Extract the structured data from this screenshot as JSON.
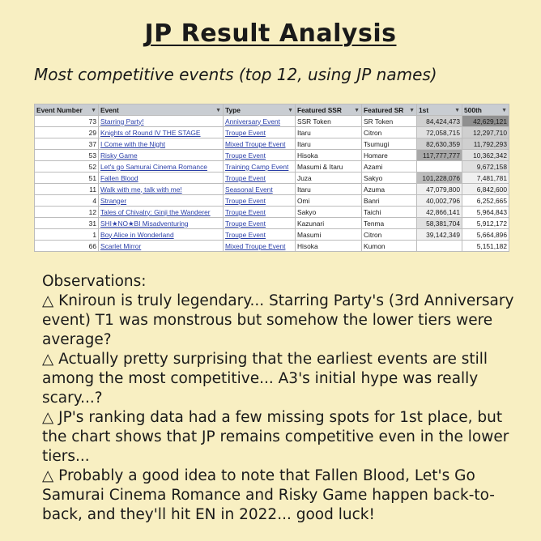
{
  "title": "JP Result Analysis",
  "subtitle": "Most competitive events (top 12, using JP names)",
  "table": {
    "headers": [
      "Event Number",
      "Event",
      "Type",
      "Featured SSR",
      "Featured SR",
      "1st",
      "500th"
    ],
    "rows": [
      [
        "73",
        "Starring Party!",
        "Anniversary Event",
        "SSR Token",
        "SR Token",
        "84,424,473",
        "42,629,121"
      ],
      [
        "29",
        "Knights of Round IV THE STAGE",
        "Troupe Event",
        "Itaru",
        "Citron",
        "72,058,715",
        "12,297,710"
      ],
      [
        "37",
        "I Come with the Night",
        "Mixed Troupe Event",
        "Itaru",
        "Tsumugi",
        "82,630,359",
        "11,792,293"
      ],
      [
        "53",
        "Risky Game",
        "Troupe Event",
        "Hisoka",
        "Homare",
        "117,777,777",
        "10,362,342"
      ],
      [
        "52",
        "Let's go Samurai Cinema Romance",
        "Training Camp Event",
        "Masumi & Itaru",
        "Azami",
        "",
        "9,672,158"
      ],
      [
        "51",
        "Fallen Blood",
        "Troupe Event",
        "Juza",
        "Sakyo",
        "101,228,076",
        "7,481,781"
      ],
      [
        "11",
        "Walk with me, talk with me!",
        "Seasonal Event",
        "Itaru",
        "Azuma",
        "47,079,800",
        "6,842,600"
      ],
      [
        "4",
        "Stranger",
        "Troupe Event",
        "Omi",
        "Banri",
        "40,002,796",
        "6,252,665"
      ],
      [
        "12",
        "Tales of Chivalry: Ginji the Wanderer",
        "Troupe Event",
        "Sakyo",
        "Taichi",
        "42,866,141",
        "5,964,843"
      ],
      [
        "31",
        "SHI★NO★BI Misadventuring",
        "Troupe Event",
        "Kazunari",
        "Tenma",
        "58,381,704",
        "5,912,172"
      ],
      [
        "1",
        "Boy Alice in Wonderland",
        "Troupe Event",
        "Masumi",
        "Citron",
        "39,142,349",
        "5,664,896"
      ],
      [
        "66",
        "Scarlet Mirror",
        "Mixed Troupe Event",
        "Hisoka",
        "Kumon",
        "",
        "5,151,182"
      ]
    ]
  },
  "observations": [
    "Observations:",
    "△ Kniroun is truly legendary... Starring Party's (3rd Anniversary event) T1 was monstrous but somehow the lower tiers were average?",
    "△ Actually pretty surprising that the earliest events are still among the most competitive... A3's initial hype was really scary...?",
    "△ JP's ranking data had a few missing spots for 1st place, but the chart shows that JP remains competitive even in the lower tiers...",
    "△ Probably a good idea to note that Fallen Blood, Let's Go Samurai Cinema Romance and Risky Game happen back-to-back, and they'll hit EN in 2022... good luck!"
  ],
  "colors": {
    "background": "#f8efc2",
    "header_bg": "#c9cdd2",
    "link": "#2a3fa8"
  },
  "icons": {
    "filter": "filter-dropdown-icon"
  }
}
